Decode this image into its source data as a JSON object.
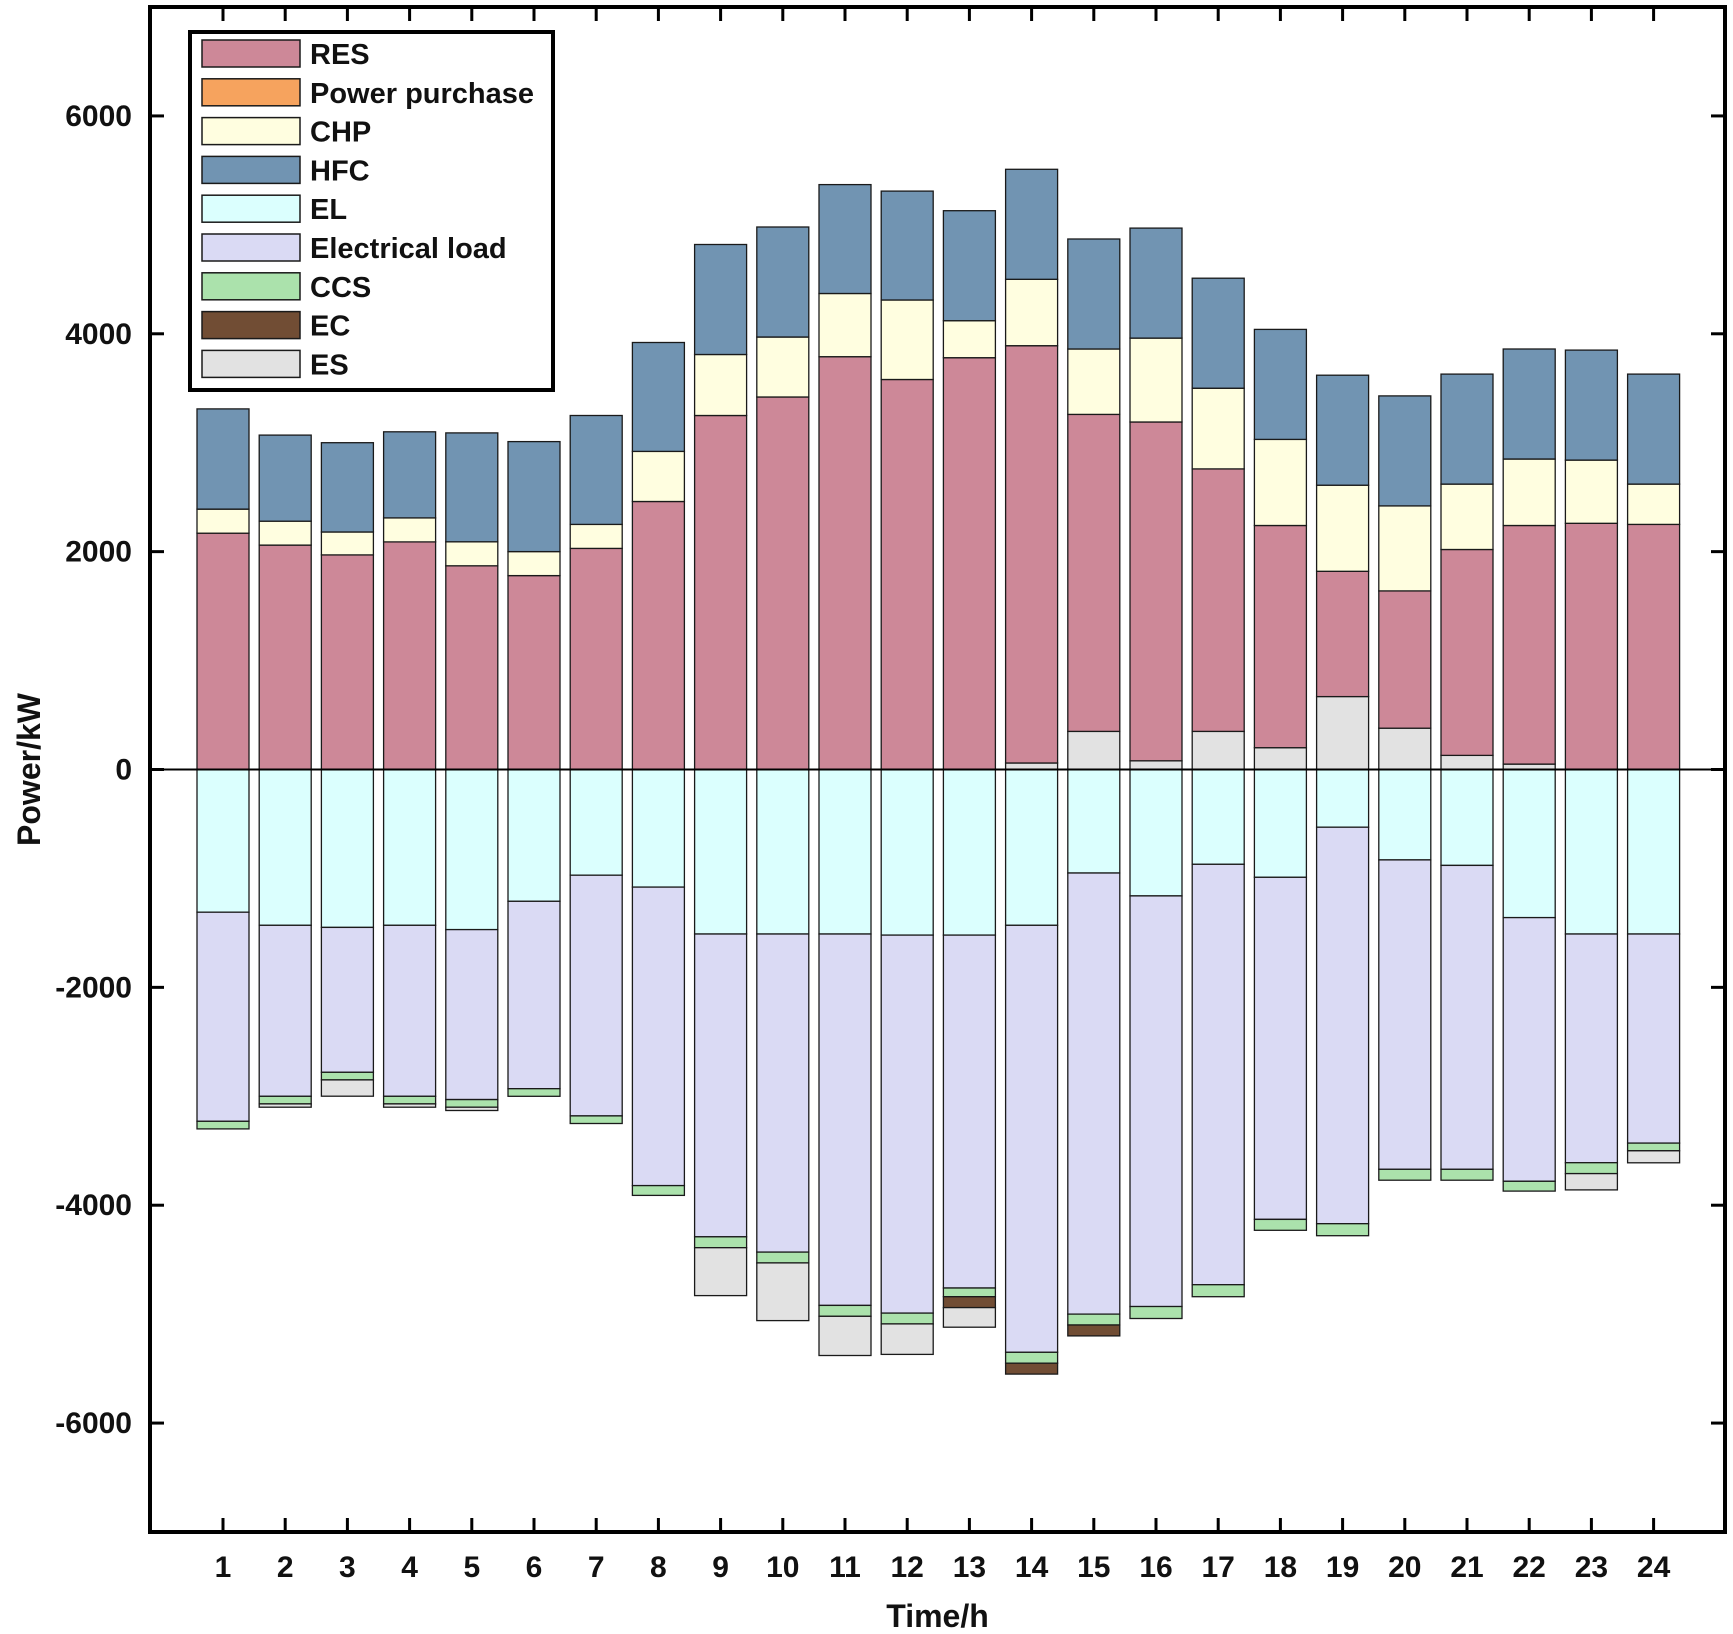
{
  "chart_data": {
    "type": "bar",
    "stacked": true,
    "title": "",
    "xlabel": "Time/h",
    "ylabel": "Power/kW",
    "ylim": [
      -7000,
      7000
    ],
    "yticks": [
      -6000,
      -4000,
      -2000,
      0,
      2000,
      4000,
      6000
    ],
    "y_tick_labels": [
      "-6000",
      "-4000",
      "-2000",
      "0",
      "2000",
      "4000",
      "6000"
    ],
    "categories": [
      "1",
      "2",
      "3",
      "4",
      "5",
      "6",
      "7",
      "8",
      "9",
      "10",
      "11",
      "12",
      "13",
      "14",
      "15",
      "16",
      "17",
      "18",
      "19",
      "20",
      "21",
      "22",
      "23",
      "24"
    ],
    "legend_position": "top-left",
    "series": [
      {
        "name": "ES",
        "color": "#e2e2e2",
        "side": "positive",
        "values": [
          0,
          0,
          0,
          0,
          0,
          0,
          0,
          0,
          0,
          0,
          0,
          0,
          0,
          60,
          350,
          80,
          350,
          200,
          670,
          380,
          130,
          50,
          0,
          0
        ]
      },
      {
        "name": "RES",
        "color": "#cd8898",
        "side": "positive",
        "values": [
          2170,
          2060,
          1970,
          2090,
          1870,
          1780,
          2030,
          2460,
          3250,
          3420,
          3790,
          3580,
          3780,
          3830,
          2910,
          3110,
          2410,
          2040,
          1150,
          1260,
          1890,
          2190,
          2260,
          2250
        ]
      },
      {
        "name": "Power purchase",
        "color": "#f6a35e",
        "side": "positive",
        "values": [
          0,
          0,
          0,
          0,
          0,
          0,
          0,
          0,
          0,
          0,
          0,
          0,
          0,
          0,
          0,
          0,
          0,
          0,
          0,
          0,
          0,
          0,
          0,
          0
        ]
      },
      {
        "name": "CHP",
        "color": "#fffee0",
        "side": "positive",
        "values": [
          220,
          220,
          210,
          220,
          220,
          220,
          220,
          460,
          560,
          550,
          580,
          730,
          340,
          610,
          600,
          770,
          740,
          790,
          790,
          780,
          600,
          610,
          580,
          370
        ]
      },
      {
        "name": "HFC",
        "color": "#7194b2",
        "side": "positive",
        "values": [
          920,
          790,
          820,
          790,
          1000,
          1010,
          1000,
          1000,
          1010,
          1010,
          1000,
          1000,
          1010,
          1010,
          1010,
          1010,
          1010,
          1010,
          1010,
          1010,
          1010,
          1010,
          1010,
          1010
        ]
      },
      {
        "name": "EL",
        "color": "#dbfffe",
        "side": "negative",
        "values": [
          1310,
          1430,
          1450,
          1430,
          1470,
          1210,
          970,
          1080,
          1510,
          1510,
          1510,
          1520,
          1520,
          1430,
          950,
          1160,
          870,
          990,
          530,
          830,
          880,
          1360,
          1510,
          1510
        ]
      },
      {
        "name": "Electrical load",
        "color": "#dadaf4",
        "side": "negative",
        "values": [
          1920,
          1570,
          1330,
          1570,
          1560,
          1720,
          2210,
          2740,
          2780,
          2920,
          3410,
          3470,
          3240,
          3920,
          4050,
          3770,
          3860,
          3140,
          3640,
          2840,
          2790,
          2420,
          2100,
          1920
        ]
      },
      {
        "name": "CCS",
        "color": "#abe2ac",
        "side": "negative",
        "values": [
          70,
          70,
          70,
          70,
          70,
          70,
          70,
          90,
          100,
          100,
          100,
          100,
          80,
          100,
          100,
          110,
          110,
          100,
          110,
          100,
          100,
          90,
          100,
          70
        ]
      },
      {
        "name": "EC",
        "color": "#714d34",
        "side": "negative",
        "values": [
          0,
          0,
          0,
          0,
          0,
          0,
          0,
          0,
          0,
          0,
          0,
          0,
          100,
          100,
          100,
          0,
          0,
          0,
          0,
          0,
          0,
          0,
          0,
          0
        ]
      },
      {
        "name": "ES",
        "color": "#e2e2e2",
        "side": "negative",
        "values": [
          0,
          30,
          150,
          30,
          30,
          0,
          0,
          0,
          440,
          530,
          360,
          280,
          180,
          0,
          0,
          0,
          0,
          0,
          0,
          0,
          0,
          0,
          150,
          110
        ]
      }
    ],
    "legend": [
      {
        "label": "RES",
        "color": "#cd8898"
      },
      {
        "label": "Power purchase",
        "color": "#f6a35e"
      },
      {
        "label": "CHP",
        "color": "#fffee0"
      },
      {
        "label": "HFC",
        "color": "#7194b2"
      },
      {
        "label": "EL",
        "color": "#dbfffe"
      },
      {
        "label": "Electrical load",
        "color": "#dadaf4"
      },
      {
        "label": "CCS",
        "color": "#abe2ac"
      },
      {
        "label": "EC",
        "color": "#714d34"
      },
      {
        "label": "ES",
        "color": "#e2e2e2"
      }
    ]
  }
}
